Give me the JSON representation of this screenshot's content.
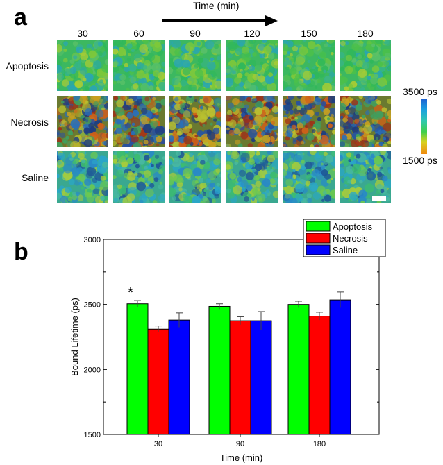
{
  "panel_a": {
    "letter": "a",
    "time_title": "Time (min)",
    "columns": [
      "30",
      "60",
      "90",
      "120",
      "150",
      "180"
    ],
    "rows": [
      "Apoptosis",
      "Necrosis",
      "Saline"
    ],
    "colorbar_max": "3500 ps",
    "colorbar_min": "1500 ps"
  },
  "panel_b": {
    "letter": "b"
  },
  "colors": {
    "apoptosis": "#00ff00",
    "necrosis": "#ff0000",
    "saline": "#0000ff"
  },
  "chart_data": {
    "type": "bar",
    "categories": [
      "30",
      "90",
      "180"
    ],
    "xlabel": "Time (min)",
    "ylabel": "Bound Lifetime (ps)",
    "ylim": [
      1500,
      3000
    ],
    "yticks": [
      "1500",
      "2000",
      "2500",
      "3000"
    ],
    "legend_position": "top-right",
    "series": [
      {
        "name": "Apoptosis",
        "color": "#00ff00",
        "values": [
          2505,
          2485,
          2500
        ],
        "errors": [
          25,
          20,
          25
        ]
      },
      {
        "name": "Necrosis",
        "color": "#ff0000",
        "values": [
          2310,
          2375,
          2410
        ],
        "errors": [
          25,
          30,
          30
        ]
      },
      {
        "name": "Saline",
        "color": "#0000ff",
        "values": [
          2380,
          2375,
          2535
        ],
        "errors": [
          55,
          70,
          60
        ]
      }
    ],
    "annotations": [
      {
        "text": "*",
        "category": "30",
        "series": "Apoptosis"
      }
    ]
  }
}
